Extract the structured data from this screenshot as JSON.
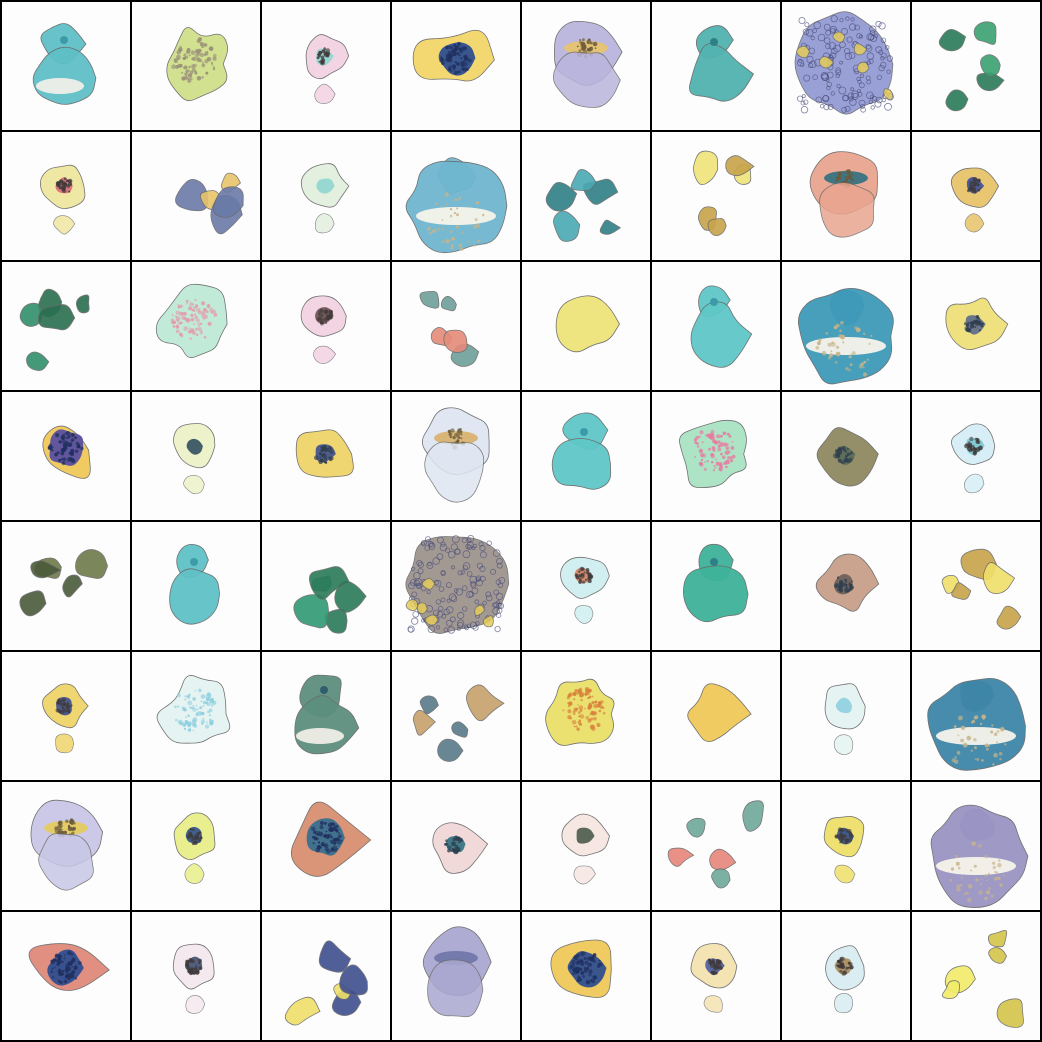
{
  "grid": {
    "rows": 8,
    "cols": 8,
    "cells": [
      {
        "shape": "hook-drop",
        "colors": [
          "#5fbfc7",
          "#3d9aa8"
        ],
        "texture": "none"
      },
      {
        "shape": "blob-speckle",
        "colors": [
          "#cfe08a",
          "#9a8f7a"
        ],
        "texture": "speckle"
      },
      {
        "shape": "ring-drop",
        "colors": [
          "#f3d2e2",
          "#8ed6cf"
        ],
        "texture": "speckle"
      },
      {
        "shape": "star-core",
        "colors": [
          "#f3d66a",
          "#2f4f8f"
        ],
        "texture": "speckle"
      },
      {
        "shape": "lens-stack",
        "colors": [
          "#b9b5dd",
          "#e8c36a"
        ],
        "texture": "speckle"
      },
      {
        "shape": "cone-stack",
        "colors": [
          "#52b3b0",
          "#2f7f86"
        ],
        "texture": "none"
      },
      {
        "shape": "big-mesh",
        "colors": [
          "#8f96d2",
          "#e5cc59"
        ],
        "texture": "mesh"
      },
      {
        "shape": "fragments",
        "colors": [
          "#3aa071",
          "#2a7a58"
        ],
        "texture": "none"
      },
      {
        "shape": "ring-drop",
        "colors": [
          "#efe6a0",
          "#d86a7a"
        ],
        "texture": "speckle"
      },
      {
        "shape": "fragments",
        "colors": [
          "#e8c46a",
          "#6a7aa8"
        ],
        "texture": "none"
      },
      {
        "shape": "ring-drop",
        "colors": [
          "#e2f0df",
          "#8ed6cf"
        ],
        "texture": "none"
      },
      {
        "shape": "wide-pill",
        "colors": [
          "#6fb6cf",
          "#3a8fb0"
        ],
        "texture": "speckle"
      },
      {
        "shape": "fragments",
        "colors": [
          "#4aa9b2",
          "#2e7f86"
        ],
        "texture": "none"
      },
      {
        "shape": "fragments",
        "colors": [
          "#efe47a",
          "#c7a44a"
        ],
        "texture": "none"
      },
      {
        "shape": "lens-stack",
        "colors": [
          "#e9a590",
          "#2f6f7f"
        ],
        "texture": "speckle"
      },
      {
        "shape": "ring-drop",
        "colors": [
          "#e8c46a",
          "#3c4f9f"
        ],
        "texture": "speckle"
      },
      {
        "shape": "fragments",
        "colors": [
          "#2f8f6a",
          "#2a6f50"
        ],
        "texture": "none"
      },
      {
        "shape": "blob-speckle",
        "colors": [
          "#bfead8",
          "#e49aa8"
        ],
        "texture": "speckle"
      },
      {
        "shape": "ring-drop",
        "colors": [
          "#f3d2e2",
          "#6b5050"
        ],
        "texture": "speckle"
      },
      {
        "shape": "fragments",
        "colors": [
          "#e58b7a",
          "#6f9f9a"
        ],
        "texture": "none"
      },
      {
        "shape": "blob-plain",
        "colors": [
          "#efe47a",
          "#d8b24a"
        ],
        "texture": "none"
      },
      {
        "shape": "cone-stack",
        "colors": [
          "#60c7c7",
          "#3d9aa8"
        ],
        "texture": "speckle"
      },
      {
        "shape": "wide-pill",
        "colors": [
          "#3e9ab8",
          "#2f6f7f"
        ],
        "texture": "speckle"
      },
      {
        "shape": "blob-plain",
        "colors": [
          "#f0e07a",
          "#5a6a8a"
        ],
        "texture": "speckle"
      },
      {
        "shape": "star-core",
        "colors": [
          "#f0c95a",
          "#5a4f9f"
        ],
        "texture": "speckle"
      },
      {
        "shape": "ring-drop",
        "colors": [
          "#eef2c8",
          "#2f4f5f"
        ],
        "texture": "none"
      },
      {
        "shape": "blob-plain",
        "colors": [
          "#f0d46a",
          "#3f4f8f"
        ],
        "texture": "speckle"
      },
      {
        "shape": "lens-stack",
        "colors": [
          "#dfe6f2",
          "#d8b06a"
        ],
        "texture": "speckle"
      },
      {
        "shape": "cone-stack",
        "colors": [
          "#60c7c7",
          "#3d9aa8"
        ],
        "texture": "speckle"
      },
      {
        "shape": "blob-speckle",
        "colors": [
          "#a9e3c4",
          "#e77aa0"
        ],
        "texture": "speckle"
      },
      {
        "shape": "blob-plain",
        "colors": [
          "#8f8a62",
          "#5a6b5a"
        ],
        "texture": "speckle"
      },
      {
        "shape": "ring-drop",
        "colors": [
          "#d7eef6",
          "#7ac6d0"
        ],
        "texture": "speckle"
      },
      {
        "shape": "fragments",
        "colors": [
          "#6f7a4a",
          "#4a5a3a"
        ],
        "texture": "none"
      },
      {
        "shape": "cone-stack",
        "colors": [
          "#5fc1c6",
          "#3d9aa8"
        ],
        "texture": "speckle"
      },
      {
        "shape": "fragments",
        "colors": [
          "#2f9a74",
          "#2a7a58"
        ],
        "texture": "none"
      },
      {
        "shape": "big-mesh",
        "colors": [
          "#9a8f88",
          "#e5cc59"
        ],
        "texture": "mesh"
      },
      {
        "shape": "ring-drop",
        "colors": [
          "#cfeff0",
          "#d08060"
        ],
        "texture": "speckle"
      },
      {
        "shape": "cone-stack",
        "colors": [
          "#3fb39a",
          "#2f7f86"
        ],
        "texture": "speckle"
      },
      {
        "shape": "blob-plain",
        "colors": [
          "#c8a08a",
          "#6a5f5a"
        ],
        "texture": "speckle"
      },
      {
        "shape": "fragments",
        "colors": [
          "#f0e06a",
          "#c7a44a"
        ],
        "texture": "none"
      },
      {
        "shape": "ring-drop",
        "colors": [
          "#f0d46a",
          "#3c4f8f"
        ],
        "texture": "speckle"
      },
      {
        "shape": "blob-speckle",
        "colors": [
          "#e4f4f2",
          "#8fcfe0"
        ],
        "texture": "none"
      },
      {
        "shape": "hook-drop",
        "colors": [
          "#5d8f7f",
          "#2f5f6f"
        ],
        "texture": "speckle"
      },
      {
        "shape": "fragments",
        "colors": [
          "#c7a06a",
          "#5a7a8a"
        ],
        "texture": "speckle"
      },
      {
        "shape": "blob-speckle",
        "colors": [
          "#e9e06a",
          "#d8803a"
        ],
        "texture": "speckle"
      },
      {
        "shape": "blob-plain",
        "colors": [
          "#f0c95a",
          "#d09a3a"
        ],
        "texture": "none"
      },
      {
        "shape": "ring-drop",
        "colors": [
          "#e4f4f2",
          "#8fcfe0"
        ],
        "texture": "none"
      },
      {
        "shape": "wide-pill",
        "colors": [
          "#3e86a8",
          "#2f5f6f"
        ],
        "texture": "speckle"
      },
      {
        "shape": "lens-stack",
        "colors": [
          "#c9c7e6",
          "#e5cc59"
        ],
        "texture": "speckle"
      },
      {
        "shape": "ring-drop",
        "colors": [
          "#e8ef8a",
          "#2f4f8f"
        ],
        "texture": "speckle"
      },
      {
        "shape": "star-core",
        "colors": [
          "#d98f70",
          "#3a6f8f"
        ],
        "texture": "speckle"
      },
      {
        "shape": "blob-plain",
        "colors": [
          "#f2d8d8",
          "#2f6f7f"
        ],
        "texture": "speckle"
      },
      {
        "shape": "ring-drop",
        "colors": [
          "#f6e6e2",
          "#4a5a4a"
        ],
        "texture": "none"
      },
      {
        "shape": "fragments",
        "colors": [
          "#e7867a",
          "#6fa89a"
        ],
        "texture": "none"
      },
      {
        "shape": "ring-drop",
        "colors": [
          "#efe06a",
          "#2f4f8f"
        ],
        "texture": "speckle"
      },
      {
        "shape": "wide-pill",
        "colors": [
          "#9a94c4",
          "#5a5f7a"
        ],
        "texture": "speckle"
      },
      {
        "shape": "star-core",
        "colors": [
          "#e08a7a",
          "#2f4f8f"
        ],
        "texture": "speckle"
      },
      {
        "shape": "ring-drop",
        "colors": [
          "#f4e8ee",
          "#3f4f6f"
        ],
        "texture": "speckle"
      },
      {
        "shape": "fragments",
        "colors": [
          "#efe06a",
          "#3f4f8f"
        ],
        "texture": "none"
      },
      {
        "shape": "lens-stack",
        "colors": [
          "#aaa8d0",
          "#6f74a8"
        ],
        "texture": "none"
      },
      {
        "shape": "star-core",
        "colors": [
          "#f0c95a",
          "#2f4f8f"
        ],
        "texture": "speckle"
      },
      {
        "shape": "ring-drop",
        "colors": [
          "#f4e2b0",
          "#4a5aa0"
        ],
        "texture": "speckle"
      },
      {
        "shape": "ring-drop",
        "colors": [
          "#d9edf2",
          "#a88a5a"
        ],
        "texture": "speckle"
      },
      {
        "shape": "fragments",
        "colors": [
          "#f2ec6a",
          "#d4c44a"
        ],
        "texture": "none"
      }
    ]
  }
}
